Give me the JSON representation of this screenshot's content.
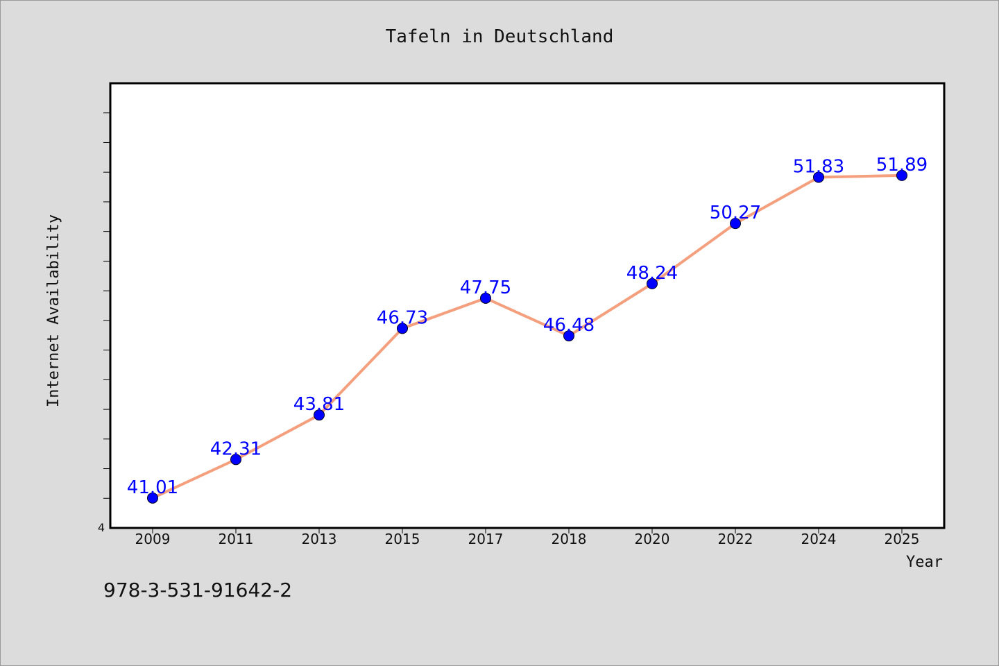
{
  "footer": {
    "code": "978-3-531-91642-2"
  },
  "chart_data": {
    "type": "line",
    "title": "Tafeln in Deutschland",
    "xlabel": "Year",
    "ylabel": "Internet Availability",
    "y_tick_label": "4",
    "categories": [
      "2009",
      "2011",
      "2013",
      "2015",
      "2017",
      "2018",
      "2020",
      "2022",
      "2024",
      "2025"
    ],
    "series": [
      {
        "values": [
          41.01,
          42.31,
          43.81,
          46.73,
          47.75,
          46.48,
          48.24,
          50.27,
          51.83,
          51.89
        ],
        "labels": [
          "41.01",
          "42.31",
          "43.81",
          "46.73",
          "47.75",
          "46.48",
          "48.24",
          "50.27",
          "51.83",
          "51.89"
        ]
      }
    ],
    "ylim": [
      40,
      55
    ],
    "grid": false,
    "colors": {
      "line": "#f4a07e",
      "marker": "#0000ff",
      "label": "#0000ff",
      "axis": "#000000",
      "background": "#ffffff"
    }
  }
}
